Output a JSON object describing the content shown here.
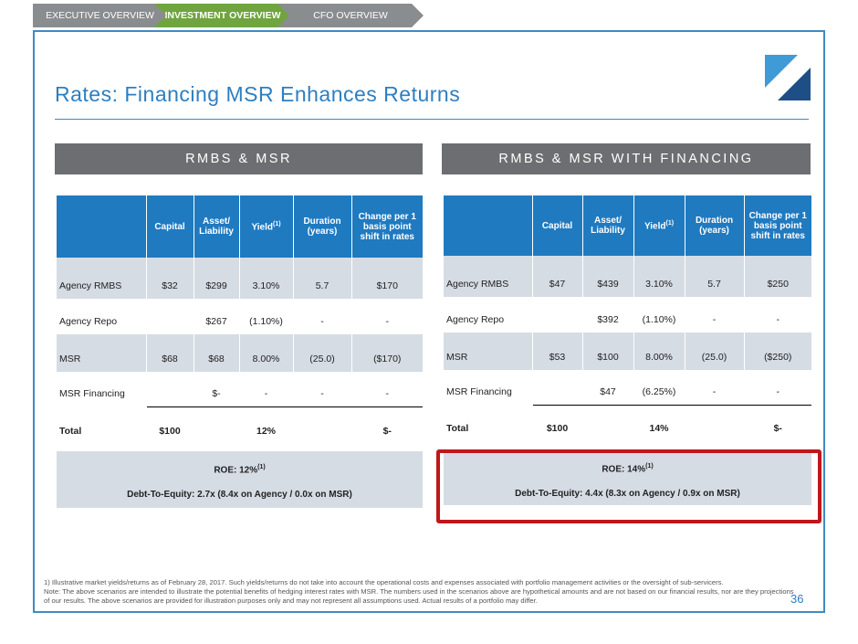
{
  "nav": {
    "tabs": [
      {
        "label": "EXECUTIVE OVERVIEW",
        "active": false
      },
      {
        "label": "INVESTMENT OVERVIEW",
        "active": true
      },
      {
        "label": "CFO OVERVIEW",
        "active": false
      }
    ]
  },
  "colors": {
    "accent_blue": "#2d7fc0",
    "table_header": "#1f7ac0",
    "active_tab": "#6fa43f",
    "inactive_tab": "#8a8d90",
    "section_header": "#6d6e71",
    "row_alt": "#d6dce4",
    "highlight_box": "#c0161c"
  },
  "logo": {
    "icon": "company-logo-icon"
  },
  "title": "Rates: Financing MSR Enhances Returns",
  "left": {
    "header": "RMBS & MSR",
    "columns": [
      "",
      "Capital",
      "Asset/ Liability",
      "Yield",
      "Duration (years)",
      "Change per 1 basis point shift in rates"
    ],
    "yield_sup": "(1)",
    "rows": [
      {
        "label": "Agency RMBS",
        "capital": "$32",
        "asset": "$299",
        "yield": "3.10%",
        "duration": "5.7",
        "change": "$170"
      },
      {
        "label": "Agency Repo",
        "capital": "",
        "asset": "$267",
        "yield": "(1.10%)",
        "duration": "-",
        "change": "-"
      },
      {
        "label": "MSR",
        "capital": "$68",
        "asset": "$68",
        "yield": "8.00%",
        "duration": "(25.0)",
        "change": "($170)"
      },
      {
        "label": "MSR Financing",
        "capital": "",
        "asset": "$-",
        "yield": "-",
        "duration": "-",
        "change": "-"
      }
    ],
    "total": {
      "label": "Total",
      "capital": "$100",
      "yield": "12%",
      "change": "$-"
    },
    "roe": "ROE: 12%",
    "roe_sup": "(1)",
    "debt_to_equity": "Debt-To-Equity:  2.7x   (8.4x on Agency / 0.0x on MSR)"
  },
  "right": {
    "header": "RMBS & MSR WITH FINANCING",
    "columns": [
      "",
      "Capital",
      "Asset/ Liability",
      "Yield",
      "Duration (years)",
      "Change per 1 basis point shift in rates"
    ],
    "yield_sup": "(1)",
    "rows": [
      {
        "label": "Agency RMBS",
        "capital": "$47",
        "asset": "$439",
        "yield": "3.10%",
        "duration": "5.7",
        "change": "$250"
      },
      {
        "label": "Agency Repo",
        "capital": "",
        "asset": "$392",
        "yield": "(1.10%)",
        "duration": "-",
        "change": "-"
      },
      {
        "label": "MSR",
        "capital": "$53",
        "asset": "$100",
        "yield": "8.00%",
        "duration": "(25.0)",
        "change": "($250)"
      },
      {
        "label": "MSR Financing",
        "capital": "",
        "asset": "$47",
        "yield": "(6.25%)",
        "duration": "-",
        "change": "-"
      }
    ],
    "total": {
      "label": "Total",
      "capital": "$100",
      "yield": "14%",
      "change": "$-"
    },
    "roe": "ROE: 14%",
    "roe_sup": "(1)",
    "debt_to_equity": "Debt-To-Equity:  4.4x   (8.3x on Agency / 0.9x on MSR)"
  },
  "footnote": {
    "line1": "1)      Illustrative market yields/returns as of February 28, 2017. Such yields/returns do not take into account the operational costs and expenses associated with portfolio management activities or the oversight of sub-servicers.",
    "line2": "Note: The above scenarios are intended to illustrate the potential benefits of hedging interest rates with MSR. The numbers used in the scenarios above are hypothetical amounts and are not based on our financial results, nor are they projections of our results.  The above scenarios are provided for illustration purposes only and may not represent all assumptions used. Actual results of a portfolio may differ."
  },
  "page_number": "36"
}
